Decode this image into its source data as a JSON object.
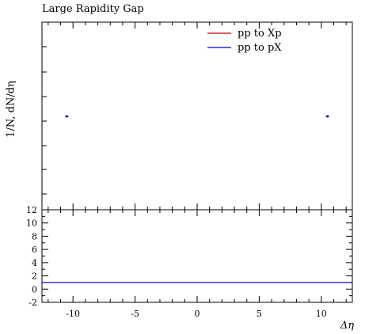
{
  "chart_data": [
    {
      "type": "scatter",
      "title": "Large Rapidity Gap",
      "ylabel": "1/N, dN/dη",
      "xlim": [
        -12.5,
        12.5
      ],
      "grid": false,
      "legend_position": "top-right",
      "series": [
        {
          "name": "pp to Xp",
          "color": "#cc0000",
          "x": [
            -10.5,
            10.5
          ],
          "y": [
            1,
            1
          ]
        },
        {
          "name": "pp to pX",
          "color": "#0000cc",
          "x": [
            -10.5,
            10.5
          ],
          "y": [
            1,
            1
          ]
        }
      ]
    },
    {
      "type": "line",
      "xlabel": "Δη",
      "xlim": [
        -12.5,
        12.5
      ],
      "ylim": [
        -2,
        12
      ],
      "yticks": [
        "-2",
        "0",
        "2",
        "4",
        "6",
        "8",
        "10",
        "12"
      ],
      "xticks": [
        "-10",
        "-5",
        "0",
        "5",
        "10"
      ],
      "series": [
        {
          "name": "pp to Xp",
          "color": "#cc0000",
          "x": [
            -12.5,
            12.5
          ],
          "y": [
            1,
            1
          ]
        },
        {
          "name": "pp to pX",
          "color": "#0000cc",
          "x": [
            -12.5,
            12.5
          ],
          "y": [
            1,
            1
          ]
        }
      ]
    }
  ]
}
